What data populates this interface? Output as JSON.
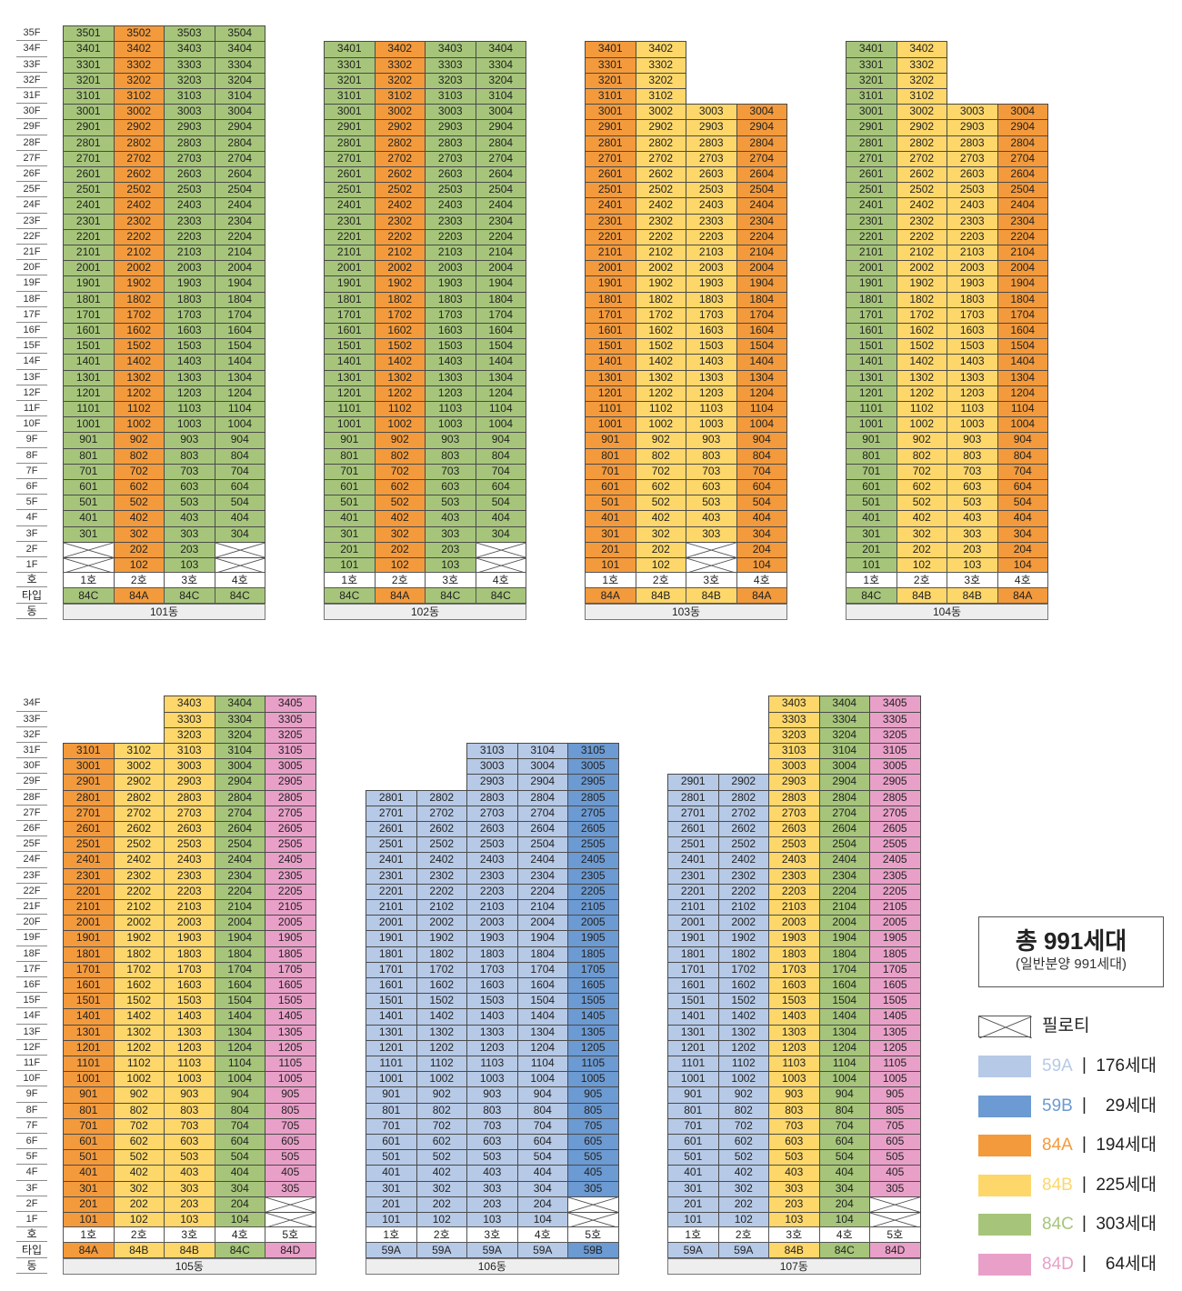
{
  "colors": {
    "59A": "#b6c9e6",
    "59B": "#6c9ad2",
    "84A": "#f39a3c",
    "84B": "#fdd76a",
    "84C": "#a6c57a",
    "84D": "#e8a0c8",
    "pilotis": "#ffffff"
  },
  "labels": {
    "ho": "호",
    "type": "타입",
    "dong": "동"
  },
  "buildings": [
    {
      "dong": "101동",
      "max_floor": 35,
      "units": [
        {
          "ho": "1호",
          "type": "84C",
          "top": 35,
          "pilotis": [
            1,
            2
          ]
        },
        {
          "ho": "2호",
          "type": "84A",
          "top": 35,
          "pilotis": []
        },
        {
          "ho": "3호",
          "type": "84C",
          "top": 35,
          "pilotis": []
        },
        {
          "ho": "4호",
          "type": "84C",
          "top": 35,
          "pilotis": [
            1,
            2
          ]
        }
      ]
    },
    {
      "dong": "102동",
      "max_floor": 34,
      "units": [
        {
          "ho": "1호",
          "type": "84C",
          "top": 34,
          "pilotis": []
        },
        {
          "ho": "2호",
          "type": "84A",
          "top": 34,
          "pilotis": []
        },
        {
          "ho": "3호",
          "type": "84C",
          "top": 34,
          "pilotis": []
        },
        {
          "ho": "4호",
          "type": "84C",
          "top": 34,
          "pilotis": [
            1,
            2
          ]
        }
      ]
    },
    {
      "dong": "103동",
      "max_floor": 34,
      "units": [
        {
          "ho": "1호",
          "type": "84A",
          "top": 34,
          "pilotis": []
        },
        {
          "ho": "2호",
          "type": "84B",
          "top": 34,
          "pilotis": []
        },
        {
          "ho": "3호",
          "type": "84B",
          "top": 30,
          "pilotis": [
            1,
            2
          ]
        },
        {
          "ho": "4호",
          "type": "84A",
          "top": 30,
          "pilotis": []
        }
      ]
    },
    {
      "dong": "104동",
      "max_floor": 34,
      "units": [
        {
          "ho": "1호",
          "type": "84C",
          "top": 34,
          "pilotis": []
        },
        {
          "ho": "2호",
          "type": "84B",
          "top": 34,
          "pilotis": []
        },
        {
          "ho": "3호",
          "type": "84B",
          "top": 30,
          "pilotis": []
        },
        {
          "ho": "4호",
          "type": "84A",
          "top": 30,
          "pilotis": []
        }
      ]
    },
    {
      "dong": "105동",
      "max_floor": 34,
      "units": [
        {
          "ho": "1호",
          "type": "84A",
          "top": 31,
          "pilotis": []
        },
        {
          "ho": "2호",
          "type": "84B",
          "top": 31,
          "pilotis": []
        },
        {
          "ho": "3호",
          "type": "84B",
          "top": 34,
          "pilotis": []
        },
        {
          "ho": "4호",
          "type": "84C",
          "top": 34,
          "pilotis": []
        },
        {
          "ho": "5호",
          "type": "84D",
          "top": 34,
          "pilotis": [
            1,
            2
          ]
        }
      ]
    },
    {
      "dong": "106동",
      "max_floor": 34,
      "units": [
        {
          "ho": "1호",
          "type": "59A",
          "top": 28,
          "pilotis": []
        },
        {
          "ho": "2호",
          "type": "59A",
          "top": 28,
          "pilotis": []
        },
        {
          "ho": "3호",
          "type": "59A",
          "top": 31,
          "pilotis": []
        },
        {
          "ho": "4호",
          "type": "59A",
          "top": 31,
          "pilotis": []
        },
        {
          "ho": "5호",
          "type": "59B",
          "top": 31,
          "pilotis": [
            1,
            2
          ]
        }
      ]
    },
    {
      "dong": "107동",
      "max_floor": 34,
      "units": [
        {
          "ho": "1호",
          "type": "59A",
          "top": 29,
          "pilotis": []
        },
        {
          "ho": "2호",
          "type": "59A",
          "top": 29,
          "pilotis": []
        },
        {
          "ho": "3호",
          "type": "84B",
          "top": 34,
          "pilotis": []
        },
        {
          "ho": "4호",
          "type": "84C",
          "top": 34,
          "pilotis": []
        },
        {
          "ho": "5호",
          "type": "84D",
          "top": 34,
          "pilotis": [
            1,
            2
          ]
        }
      ]
    }
  ],
  "legend": {
    "total": "총 991세대",
    "sub": "(일반분양 991세대)",
    "pilotis_label": "필로티",
    "separator": "|",
    "items": [
      {
        "type": "59A",
        "count": "176세대"
      },
      {
        "type": "59B",
        "count": "29세대"
      },
      {
        "type": "84A",
        "count": "194세대"
      },
      {
        "type": "84B",
        "count": "225세대"
      },
      {
        "type": "84C",
        "count": "303세대"
      },
      {
        "type": "84D",
        "count": "64세대"
      }
    ]
  }
}
